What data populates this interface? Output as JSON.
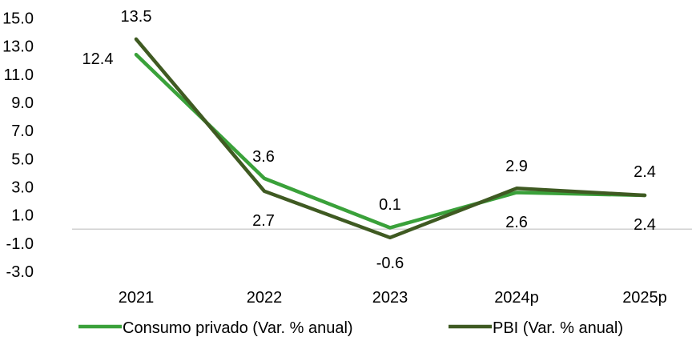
{
  "chart_data": {
    "type": "line",
    "categories": [
      "2021",
      "2022",
      "2023",
      "2024p",
      "2025p"
    ],
    "ylim": [
      -3.0,
      15.0
    ],
    "yticks": [
      "15.0",
      "13.0",
      "11.0",
      "9.0",
      "7.0",
      "5.0",
      "3.0",
      "1.0",
      "-1.0",
      "-3.0"
    ],
    "grid": false,
    "legend_position": "bottom",
    "series": [
      {
        "name": "Consumo privado (Var. % anual)",
        "values": [
          12.4,
          3.6,
          0.1,
          2.6,
          2.4
        ],
        "labels": [
          "12.4",
          "3.6",
          "0.1",
          "2.6",
          "2.4"
        ],
        "color": "#3aa13a"
      },
      {
        "name": "PBI (Var. % anual)",
        "values": [
          13.5,
          2.7,
          -0.6,
          2.9,
          2.4
        ],
        "labels": [
          "13.5",
          "2.7",
          "-0.6",
          "2.9",
          "2.4"
        ],
        "color": "#3f5a22"
      }
    ]
  }
}
